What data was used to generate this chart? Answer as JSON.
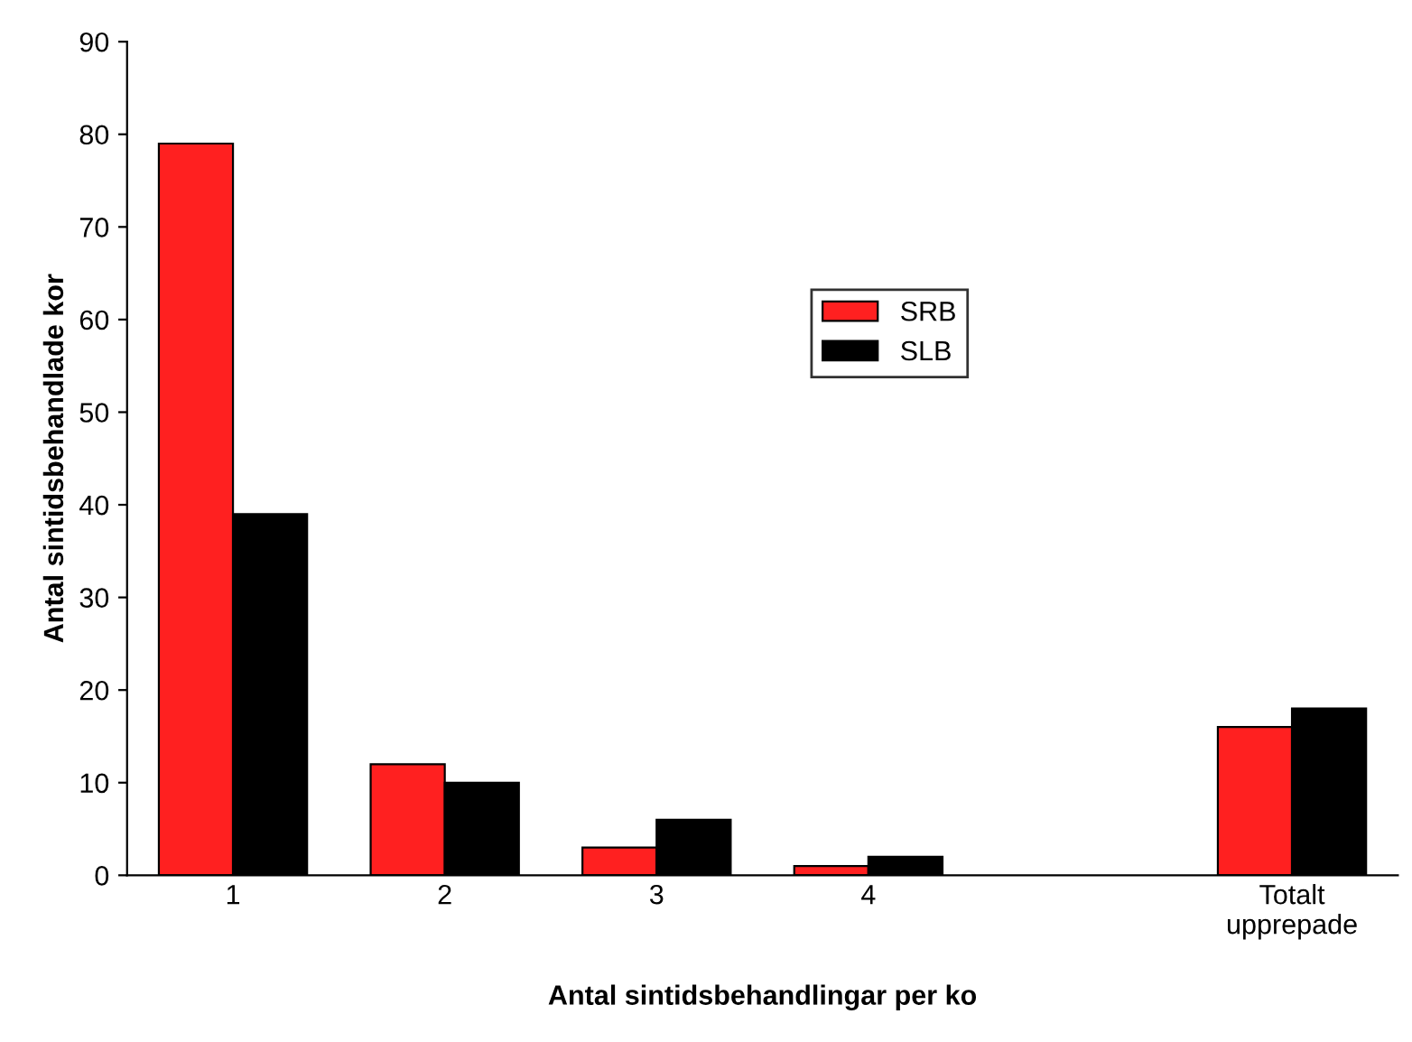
{
  "chart_data": {
    "type": "bar",
    "xlabel": "Antal sintidsbehandlingar per ko",
    "ylabel": "Antal sintidsbehandlade kor",
    "categories": [
      "1",
      "2",
      "3",
      "4",
      null,
      "Totalt\nupprepade"
    ],
    "series": [
      {
        "name": "SRB",
        "color": "#ff2020",
        "values": [
          79,
          12,
          3,
          1,
          null,
          16
        ]
      },
      {
        "name": "SLB",
        "color": "#000000",
        "values": [
          39,
          10,
          6,
          2,
          null,
          18
        ]
      }
    ],
    "ylim": [
      0,
      90
    ],
    "yticks": [
      0,
      10,
      20,
      30,
      40,
      50,
      60,
      70,
      80,
      90
    ],
    "grid": false,
    "legend": "center"
  }
}
